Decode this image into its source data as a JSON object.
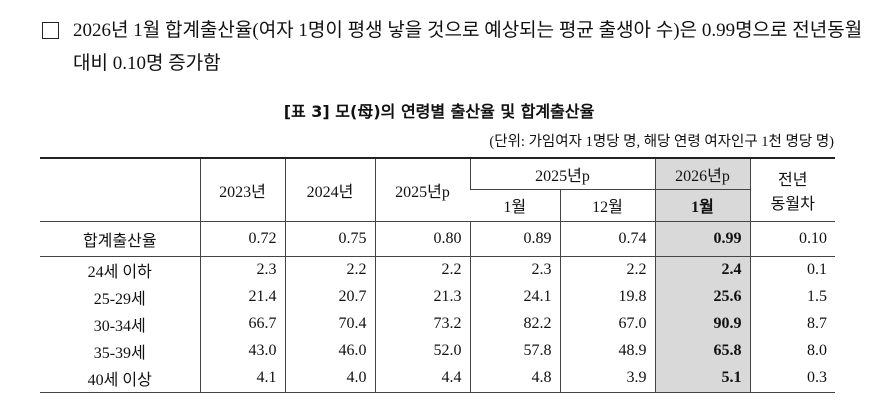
{
  "intro": "2026년 1월 합계출산율(여자 1명이 평생 낳을 것으로 예상되는 평균 출생아 수)은 0.99명으로 전년동월대비 0.10명 증가함",
  "table": {
    "title": "[표 3] 모(母)의 연령별 출산율 및 합계출산율",
    "unit": "(단위: 가임여자 1명당 명, 해당 연령 여자인구 1천 명당 명)",
    "header": {
      "col1": "2023년",
      "col2": "2024년",
      "col3": "2025년p",
      "group": "2025년p",
      "sub1": "1월",
      "sub2": "12월",
      "latest": "2026년p",
      "latest_sub": "1월",
      "diff": [
        "전년",
        "동월차"
      ]
    },
    "rows": [
      {
        "label": "합계출산율",
        "values": [
          "0.72",
          "0.75",
          "0.80",
          "0.89",
          "0.74",
          "0.99",
          "0.10"
        ]
      },
      {
        "label": "24세 이하",
        "values": [
          "2.3",
          "2.2",
          "2.2",
          "2.3",
          "2.2",
          "2.4",
          "0.1"
        ]
      },
      {
        "label": "25-29세",
        "values": [
          "21.4",
          "20.7",
          "21.3",
          "24.1",
          "19.8",
          "25.6",
          "1.5"
        ]
      },
      {
        "label": "30-34세",
        "values": [
          "66.7",
          "70.4",
          "73.2",
          "82.2",
          "67.0",
          "90.9",
          "8.7"
        ]
      },
      {
        "label": "35-39세",
        "values": [
          "43.0",
          "46.0",
          "52.0",
          "57.8",
          "48.9",
          "65.8",
          "8.0"
        ]
      },
      {
        "label": "40세 이상",
        "values": [
          "4.1",
          "4.0",
          "4.4",
          "4.8",
          "3.9",
          "5.1",
          "0.3"
        ]
      }
    ]
  }
}
